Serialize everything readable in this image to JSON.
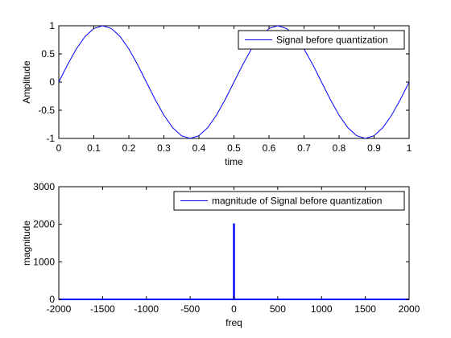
{
  "colors": {
    "series": "#0000ff",
    "axis": "#000000",
    "background": "#ffffff"
  },
  "chart_data": [
    {
      "type": "line",
      "xlabel": "time",
      "ylabel": "Amplitude",
      "xlim": [
        0,
        1
      ],
      "ylim": [
        -1,
        1
      ],
      "xticks": [
        "0",
        "0.1",
        "0.2",
        "0.3",
        "0.4",
        "0.5",
        "0.6",
        "0.7",
        "0.8",
        "0.9",
        "1"
      ],
      "yticks": [
        "-1",
        "-0.5",
        "0",
        "0.5",
        "1"
      ],
      "grid": false,
      "legend_position": "top-right",
      "series": [
        {
          "name": "Signal before quantization",
          "x": [
            0,
            0.025,
            0.05,
            0.075,
            0.1,
            0.125,
            0.15,
            0.175,
            0.2,
            0.225,
            0.25,
            0.275,
            0.3,
            0.325,
            0.35,
            0.375,
            0.4,
            0.425,
            0.45,
            0.475,
            0.5,
            0.525,
            0.55,
            0.575,
            0.6,
            0.625,
            0.65,
            0.675,
            0.7,
            0.725,
            0.75,
            0.775,
            0.8,
            0.825,
            0.85,
            0.875,
            0.9,
            0.925,
            0.95,
            0.975,
            1.0
          ],
          "y": [
            0,
            0.309,
            0.588,
            0.809,
            0.951,
            1.0,
            0.951,
            0.809,
            0.588,
            0.309,
            0,
            -0.309,
            -0.588,
            -0.809,
            -0.951,
            -1.0,
            -0.951,
            -0.809,
            -0.588,
            -0.309,
            0,
            0.309,
            0.588,
            0.809,
            0.951,
            1.0,
            0.951,
            0.809,
            0.588,
            0.309,
            0,
            -0.309,
            -0.588,
            -0.809,
            -0.951,
            -1.0,
            -0.951,
            -0.809,
            -0.588,
            -0.309,
            0
          ]
        }
      ]
    },
    {
      "type": "line",
      "xlabel": "freq",
      "ylabel": "magnitude",
      "xlim": [
        -2000,
        2000
      ],
      "ylim": [
        0,
        3000
      ],
      "xticks": [
        "-2000",
        "-1500",
        "-1000",
        "-500",
        "0",
        "500",
        "1000",
        "1500",
        "2000"
      ],
      "yticks": [
        "0",
        "1000",
        "2000",
        "3000"
      ],
      "grid": false,
      "legend_position": "top-right",
      "series": [
        {
          "name": "magnitude of Signal before quantization",
          "x": [
            -2000,
            -2,
            -2,
            0,
            2,
            2,
            2000
          ],
          "y": [
            0,
            0,
            2000,
            2000,
            2000,
            0,
            0
          ]
        }
      ]
    }
  ]
}
